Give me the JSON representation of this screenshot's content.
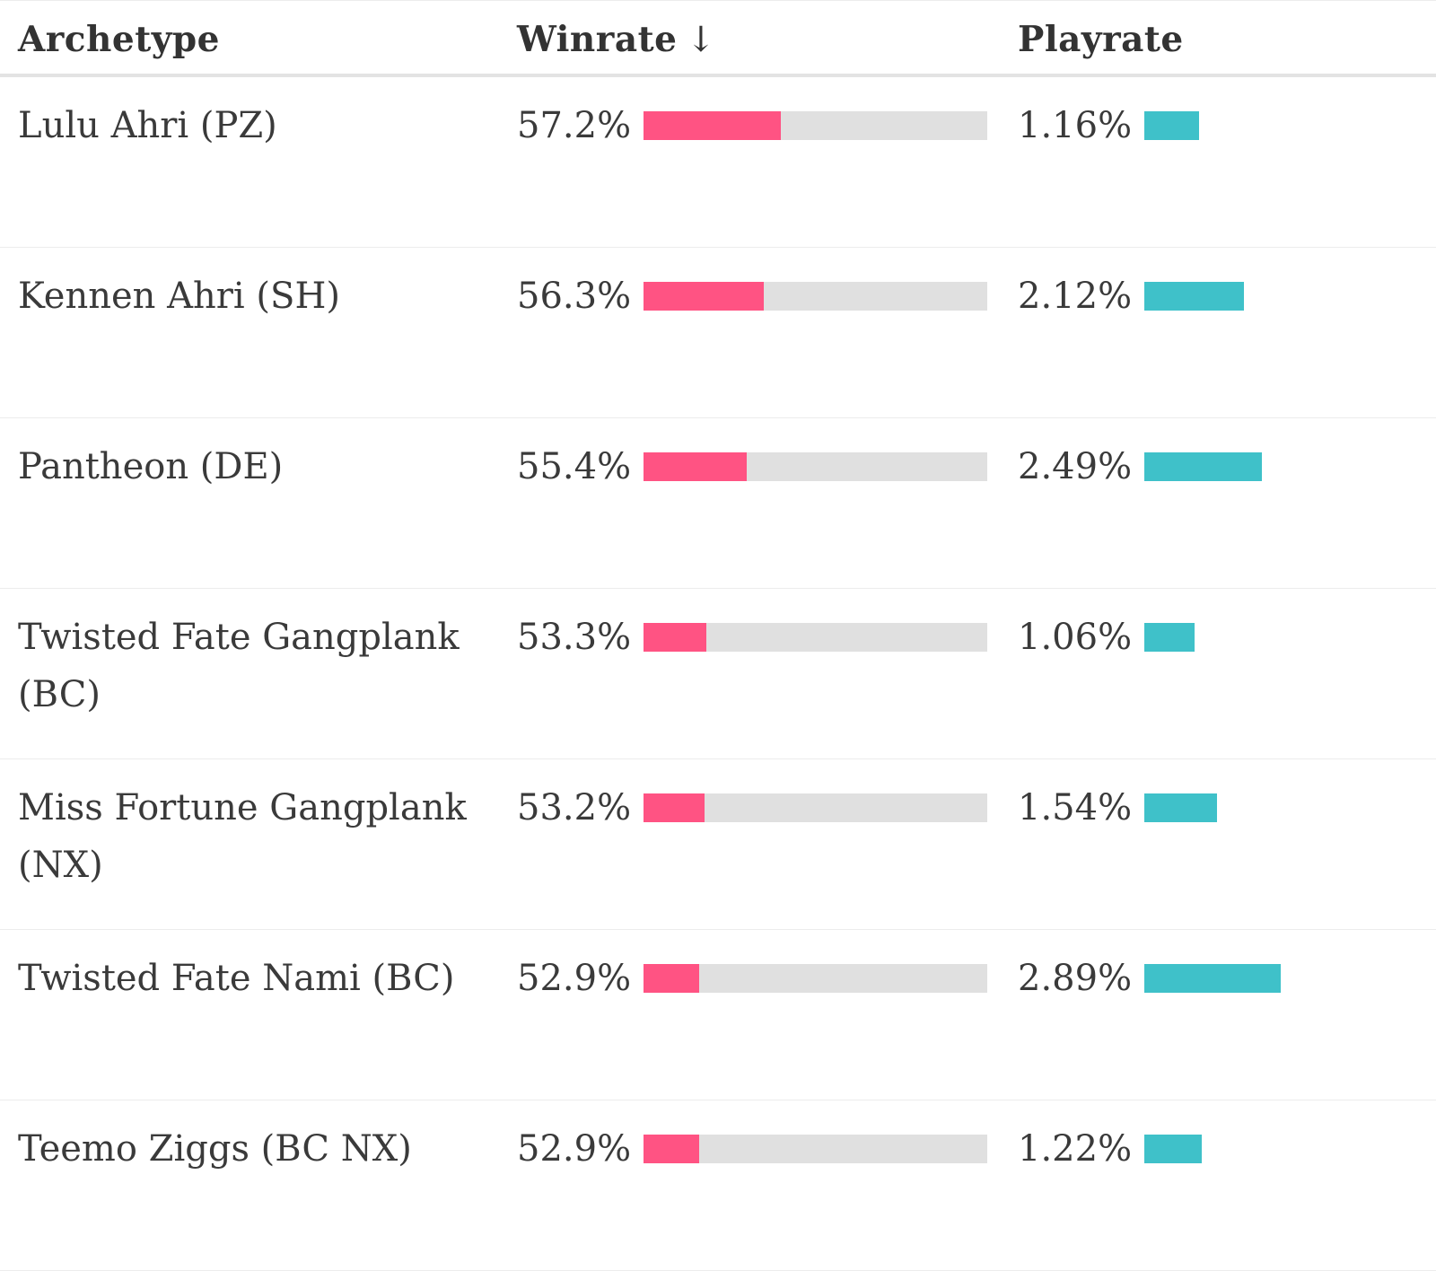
{
  "colors": {
    "winrate_fill": "#ff5383",
    "winrate_track": "#e0e0e0",
    "playrate_fill": "#3fc1c9",
    "text": "#3a3a3a"
  },
  "table": {
    "headers": {
      "archetype": "Archetype",
      "winrate": "Winrate",
      "winrate_sort_icon": "↓",
      "playrate": "Playrate"
    }
  },
  "chart_data": {
    "type": "table",
    "columns": [
      "Archetype",
      "Winrate",
      "Playrate"
    ],
    "sort": {
      "column": "Winrate",
      "direction": "descending"
    },
    "rows": [
      {
        "archetype": "Lulu Ahri (PZ)",
        "winrate": 57.2,
        "winrate_label": "57.2%",
        "playrate": 1.16,
        "playrate_label": "1.16%"
      },
      {
        "archetype": "Kennen Ahri (SH)",
        "winrate": 56.3,
        "winrate_label": "56.3%",
        "playrate": 2.12,
        "playrate_label": "2.12%"
      },
      {
        "archetype": "Pantheon (DE)",
        "winrate": 55.4,
        "winrate_label": "55.4%",
        "playrate": 2.49,
        "playrate_label": "2.49%"
      },
      {
        "archetype": "Twisted Fate Gangplank (BC)",
        "winrate": 53.3,
        "winrate_label": "53.3%",
        "playrate": 1.06,
        "playrate_label": "1.06%"
      },
      {
        "archetype": "Miss Fortune Gangplank (NX)",
        "winrate": 53.2,
        "winrate_label": "53.2%",
        "playrate": 1.54,
        "playrate_label": "1.54%"
      },
      {
        "archetype": "Twisted Fate Nami (BC)",
        "winrate": 52.9,
        "winrate_label": "52.9%",
        "playrate": 2.89,
        "playrate_label": "2.89%"
      },
      {
        "archetype": "Teemo Ziggs (BC NX)",
        "winrate": 52.9,
        "winrate_label": "52.9%",
        "playrate": 1.22,
        "playrate_label": "1.22%"
      }
    ]
  }
}
